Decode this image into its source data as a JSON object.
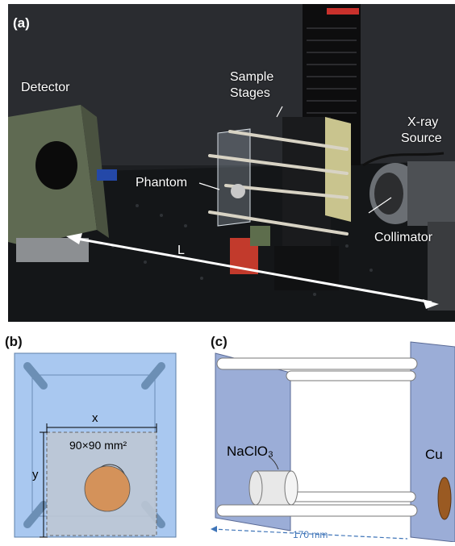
{
  "panel_a": {
    "label": "(a)",
    "annotations": {
      "detector": "Detector",
      "sample_stages_line1": "Sample",
      "sample_stages_line2": "Stages",
      "xray_line1": "X-ray",
      "xray_line2": "Source",
      "phantom": "Phantom",
      "collimator": "Collimator",
      "distance": "L"
    }
  },
  "panel_b": {
    "label": "(b)",
    "x_label": "x",
    "y_label": "y",
    "area_label": "90×90 mm²",
    "colors": {
      "frame": "#a9c8f0",
      "rod": "#6c8fb5",
      "sample": "#d4925a",
      "region": "#bcc6d4"
    }
  },
  "panel_c": {
    "label": "(c)",
    "sample1": "NaClO₃",
    "sample2": "Cu",
    "length": "170 mm",
    "colors": {
      "plate": "#8a9fd0",
      "cylinder": "#e8e8e8",
      "cu": "#9a5a22"
    }
  }
}
